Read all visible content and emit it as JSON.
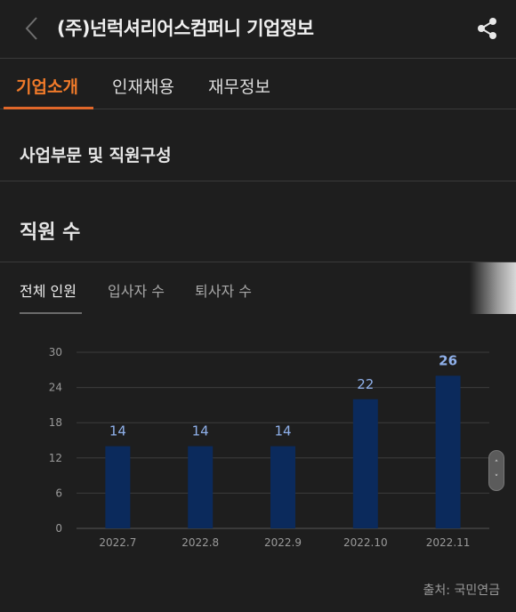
{
  "header": {
    "title": "(주)넌럭셔리어스컴퍼니 기업정보",
    "back_icon": "chevron-left-icon",
    "share_icon": "share-icon"
  },
  "tabs": [
    {
      "label": "기업소개",
      "active": true
    },
    {
      "label": "인재채용",
      "active": false
    },
    {
      "label": "재무정보",
      "active": false
    }
  ],
  "sections": {
    "business": "사업부문 및 직원구성",
    "employees": "직원 수"
  },
  "subtabs": [
    {
      "label": "전체 인원",
      "active": true
    },
    {
      "label": "입사자 수",
      "active": false
    },
    {
      "label": "퇴사자 수",
      "active": false
    }
  ],
  "chart_data": {
    "type": "bar",
    "categories": [
      "2022.7",
      "2022.8",
      "2022.9",
      "2022.10",
      "2022.11"
    ],
    "values": [
      14,
      14,
      14,
      22,
      26
    ],
    "ylim": [
      0,
      30
    ],
    "yticks": [
      0,
      6,
      12,
      18,
      24,
      30
    ],
    "grid": true,
    "bar_color": "#0b2a5c",
    "label_color": "#8fb0ea",
    "highlight_last": true
  },
  "source": "출처: 국민연금"
}
